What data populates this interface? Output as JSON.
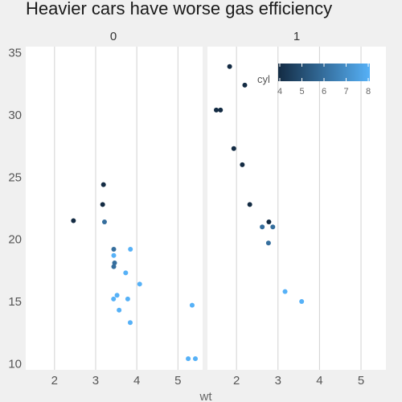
{
  "chart_data": {
    "type": "scatter",
    "title": "Heavier cars have worse gas efficiency",
    "xlabel": "wt",
    "ylabel": "",
    "facet_labels": [
      "0",
      "1"
    ],
    "xlim": [
      1.3,
      5.6
    ],
    "ylim": [
      9.5,
      35.5
    ],
    "xticks": [
      2,
      3,
      4,
      5
    ],
    "yticks": [
      10,
      15,
      20,
      25,
      30,
      35
    ],
    "grid": true,
    "legend": {
      "title": "cyl",
      "placement": "top-right of panel 1",
      "type": "colorbar",
      "min": 4,
      "max": 8,
      "ticks": [
        4,
        5,
        6,
        7,
        8
      ],
      "low_color": "#132B43",
      "high_color": "#56B1F7"
    },
    "panels": [
      {
        "facet": "0",
        "points": [
          {
            "x": 2.46,
            "y": 21.5,
            "cyl": 4
          },
          {
            "x": 3.17,
            "y": 22.8,
            "cyl": 4
          },
          {
            "x": 3.19,
            "y": 24.4,
            "cyl": 4
          },
          {
            "x": 3.215,
            "y": 21.4,
            "cyl": 6
          },
          {
            "x": 3.44,
            "y": 19.2,
            "cyl": 6
          },
          {
            "x": 3.44,
            "y": 18.7,
            "cyl": 8
          },
          {
            "x": 3.44,
            "y": 17.8,
            "cyl": 6
          },
          {
            "x": 3.46,
            "y": 18.1,
            "cyl": 6
          },
          {
            "x": 3.52,
            "y": 15.5,
            "cyl": 8
          },
          {
            "x": 3.435,
            "y": 15.2,
            "cyl": 8
          },
          {
            "x": 3.57,
            "y": 14.3,
            "cyl": 8
          },
          {
            "x": 3.73,
            "y": 17.3,
            "cyl": 8
          },
          {
            "x": 3.78,
            "y": 15.2,
            "cyl": 8
          },
          {
            "x": 3.84,
            "y": 13.3,
            "cyl": 8
          },
          {
            "x": 3.845,
            "y": 19.2,
            "cyl": 8
          },
          {
            "x": 4.07,
            "y": 16.4,
            "cyl": 8
          },
          {
            "x": 5.25,
            "y": 10.4,
            "cyl": 8
          },
          {
            "x": 5.345,
            "y": 14.7,
            "cyl": 8
          },
          {
            "x": 5.424,
            "y": 10.4,
            "cyl": 8
          }
        ]
      },
      {
        "facet": "1",
        "points": [
          {
            "x": 1.513,
            "y": 30.4,
            "cyl": 4
          },
          {
            "x": 1.615,
            "y": 30.4,
            "cyl": 4
          },
          {
            "x": 1.835,
            "y": 33.9,
            "cyl": 4
          },
          {
            "x": 1.935,
            "y": 27.3,
            "cyl": 4
          },
          {
            "x": 2.14,
            "y": 26.0,
            "cyl": 4
          },
          {
            "x": 2.2,
            "y": 32.4,
            "cyl": 4
          },
          {
            "x": 2.32,
            "y": 22.8,
            "cyl": 4
          },
          {
            "x": 2.62,
            "y": 21.0,
            "cyl": 6
          },
          {
            "x": 2.77,
            "y": 19.7,
            "cyl": 6
          },
          {
            "x": 2.78,
            "y": 21.4,
            "cyl": 4
          },
          {
            "x": 2.875,
            "y": 21.0,
            "cyl": 6
          },
          {
            "x": 3.17,
            "y": 15.8,
            "cyl": 8
          },
          {
            "x": 3.57,
            "y": 15.0,
            "cyl": 8
          }
        ]
      }
    ]
  }
}
